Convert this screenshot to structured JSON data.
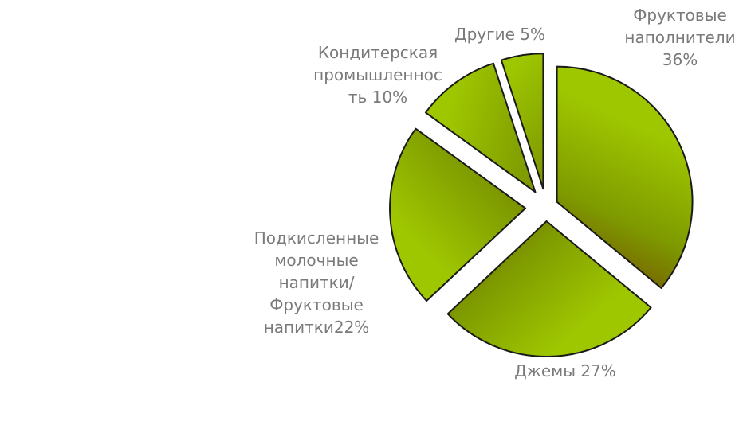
{
  "chart_data": {
    "type": "pie",
    "exploded": true,
    "start_angle_deg": 0,
    "direction": "clockwise",
    "categories": [
      "Фруктовые наполнители",
      "Джемы",
      "Подкисленные молочные напитки/ Фруктовые напитки",
      "Кондитерская промышленность",
      "Другие"
    ],
    "values": [
      36,
      27,
      22,
      10,
      5
    ],
    "value_unit": "%",
    "data_labels": [
      {
        "lines": [
          "Фруктовые",
          "наполнители",
          "36%"
        ]
      },
      {
        "lines": [
          "Джемы 27%"
        ]
      },
      {
        "lines": [
          "Подкисленные",
          "молочные",
          "напитки/",
          "Фруктовые",
          "напитки22%"
        ]
      },
      {
        "lines": [
          "Кондитерская",
          "промышленнос",
          "ть 10%"
        ]
      },
      {
        "lines": [
          "Другие 5%"
        ]
      }
    ],
    "legend": "none",
    "colors": {
      "gradient_light": "#9fc700",
      "gradient_mid": "#7e9a00",
      "gradient_dark": "#6e2800",
      "outline": "#1a1a1a",
      "label_text": "#7a7a7a"
    }
  }
}
